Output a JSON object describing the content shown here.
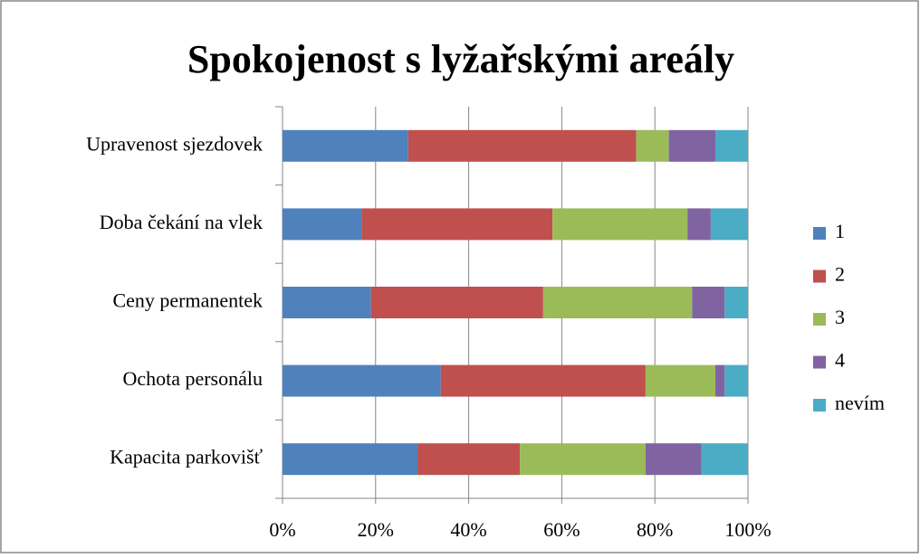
{
  "chart_data": {
    "type": "stacked_bar_horizontal",
    "title": "Spokojenost s lyžařskými areály",
    "categories": [
      "Upravenost sjezdovek",
      "Doba čekání na vlek",
      "Ceny permanentek",
      "Ochota personálu",
      "Kapacita parkovišť"
    ],
    "series": [
      {
        "name": "1",
        "color": "#4f81bd",
        "values": [
          27,
          17,
          19,
          34,
          29
        ]
      },
      {
        "name": "2",
        "color": "#c0504d",
        "values": [
          49,
          41,
          37,
          44,
          22
        ]
      },
      {
        "name": "3",
        "color": "#9bbb59",
        "values": [
          7,
          29,
          32,
          15,
          27
        ]
      },
      {
        "name": "4",
        "color": "#8064a2",
        "values": [
          10,
          5,
          7,
          2,
          12
        ]
      },
      {
        "name": "nevím",
        "color": "#4bacc6",
        "values": [
          7,
          8,
          5,
          5,
          10
        ]
      }
    ],
    "xlim": [
      0,
      100
    ],
    "xticks": [
      {
        "value": 0,
        "label": "0%"
      },
      {
        "value": 20,
        "label": "20%"
      },
      {
        "value": 40,
        "label": "40%"
      },
      {
        "value": 60,
        "label": "60%"
      },
      {
        "value": 80,
        "label": "80%"
      },
      {
        "value": 100,
        "label": "100%"
      }
    ],
    "grid": true,
    "legend": "right"
  }
}
